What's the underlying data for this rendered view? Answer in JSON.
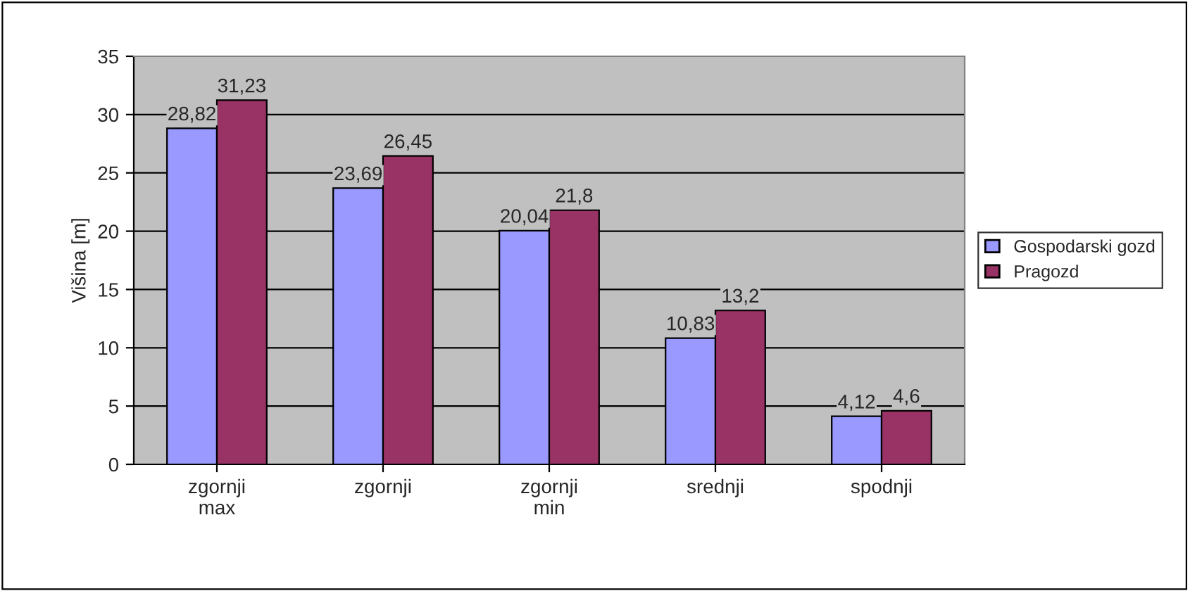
{
  "chart_data": {
    "type": "bar",
    "ylabel": "Višina [m]",
    "categories": [
      "zgornji\nmax",
      "zgornji",
      "zgornji\nmin",
      "srednji",
      "spodnji"
    ],
    "series": [
      {
        "name": "Gospodarski gozd",
        "color": "#9999ff",
        "values": [
          28.82,
          23.69,
          20.04,
          10.83,
          4.12
        ],
        "value_labels": [
          "28,82",
          "23,69",
          "20,04",
          "10,83",
          "4,12"
        ]
      },
      {
        "name": "Pragozd",
        "color": "#993366",
        "values": [
          31.23,
          26.45,
          21.8,
          13.2,
          4.6
        ],
        "value_labels": [
          "31,23",
          "26,45",
          "21,8",
          "13,2",
          "4,6"
        ]
      }
    ],
    "ylim": [
      0,
      35
    ],
    "yticks": [
      0,
      5,
      10,
      15,
      20,
      25,
      30,
      35
    ],
    "grid": "y",
    "legend": "right"
  }
}
